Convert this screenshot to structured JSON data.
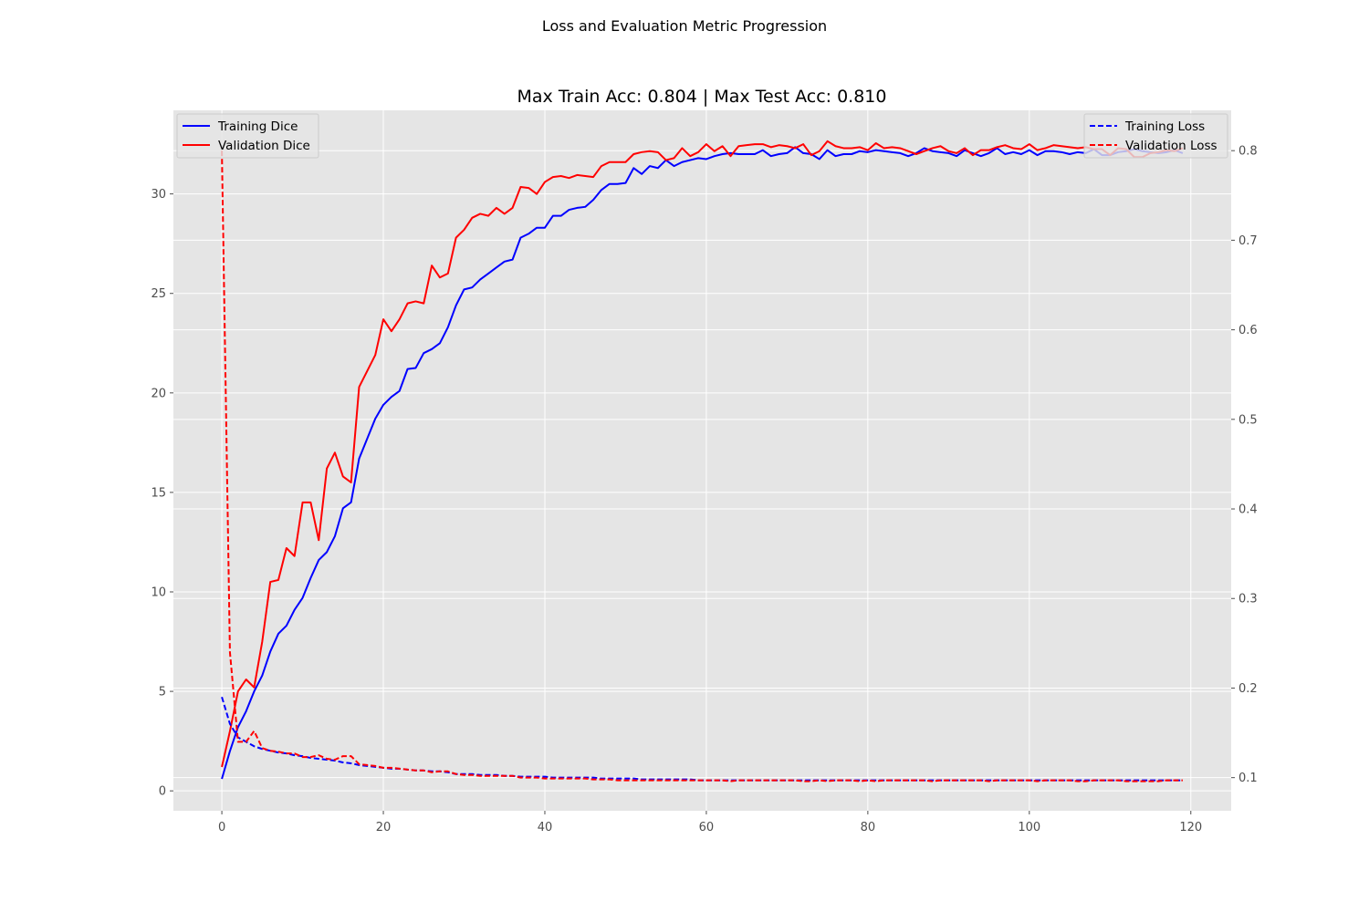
{
  "figure": {
    "suptitle": "Loss and Evaluation Metric Progression",
    "title": "Max Train Acc: 0.804 | Max Test Acc: 0.810"
  },
  "colors": {
    "background": "#e5e5e5",
    "grid": "#ffffff",
    "tick_text": "#4d4d4d",
    "training": "#0000ff",
    "validation": "#ff0000"
  },
  "chart_data": {
    "type": "line",
    "x": [
      0,
      1,
      2,
      3,
      4,
      5,
      6,
      7,
      8,
      9,
      10,
      11,
      12,
      13,
      14,
      15,
      16,
      17,
      18,
      19,
      20,
      21,
      22,
      23,
      24,
      25,
      26,
      27,
      28,
      29,
      30,
      31,
      32,
      33,
      34,
      35,
      36,
      37,
      38,
      39,
      40,
      41,
      42,
      43,
      44,
      45,
      46,
      47,
      48,
      49,
      50,
      51,
      52,
      53,
      54,
      55,
      56,
      57,
      58,
      59,
      60,
      61,
      62,
      63,
      64,
      65,
      66,
      67,
      68,
      69,
      70,
      71,
      72,
      73,
      74,
      75,
      76,
      77,
      78,
      79,
      80,
      81,
      82,
      83,
      84,
      85,
      86,
      87,
      88,
      89,
      90,
      91,
      92,
      93,
      94,
      95,
      96,
      97,
      98,
      99,
      100,
      101,
      102,
      103,
      104,
      105,
      106,
      107,
      108,
      109,
      110,
      111,
      112,
      113,
      114,
      115,
      116,
      117,
      118,
      119
    ],
    "xlim": [
      -6,
      125
    ],
    "xticks": [
      "0",
      "20",
      "40",
      "60",
      "80",
      "100",
      "120"
    ],
    "grid": true,
    "left_axis": {
      "ylim": [
        -1,
        34.2
      ],
      "ticks": [
        "0",
        "5",
        "10",
        "15",
        "20",
        "25",
        "30"
      ],
      "legend_placement": "upper-left",
      "series": [
        {
          "name": "Training Dice",
          "color": "#0000ff",
          "style": "solid",
          "values": [
            0.6,
            2.0,
            3.2,
            4.0,
            5.0,
            5.8,
            7.0,
            7.9,
            8.3,
            9.1,
            9.7,
            10.7,
            11.6,
            12.0,
            12.8,
            14.2,
            14.5,
            16.7,
            17.7,
            18.7,
            19.4,
            19.8,
            20.1,
            21.2,
            21.25,
            22.0,
            22.2,
            22.5,
            23.3,
            24.4,
            25.2,
            25.3,
            25.7,
            26.0,
            26.3,
            26.6,
            26.7,
            27.8,
            28.0,
            28.3,
            28.3,
            28.9,
            28.9,
            29.2,
            29.3,
            29.35,
            29.7,
            30.2,
            30.5,
            30.5,
            30.55,
            31.3,
            31.0,
            31.4,
            31.3,
            31.7,
            31.4,
            31.6,
            31.7,
            31.8,
            31.75,
            31.9,
            32.0,
            32.05,
            32.0,
            32.0,
            32.0,
            32.2,
            31.9,
            32.0,
            32.05,
            32.35,
            32.05,
            32.0,
            31.75,
            32.2,
            31.9,
            32.0,
            32.0,
            32.15,
            32.1,
            32.2,
            32.15,
            32.1,
            32.05,
            31.9,
            32.05,
            32.3,
            32.15,
            32.1,
            32.05,
            31.9,
            32.2,
            32.05,
            31.9,
            32.05,
            32.3,
            32.0,
            32.1,
            32.0,
            32.2,
            31.95,
            32.15,
            32.15,
            32.1,
            32.0,
            32.1,
            32.05,
            32.25,
            31.95,
            31.95,
            32.1,
            32.15,
            32.25,
            32.15,
            32.1,
            32.05,
            32.1,
            32.2,
            32.05
          ]
        },
        {
          "name": "Validation Dice",
          "color": "#ff0000",
          "style": "solid",
          "values": [
            1.2,
            3.0,
            5.0,
            5.6,
            5.2,
            7.5,
            10.5,
            10.6,
            12.2,
            11.8,
            14.5,
            14.5,
            12.6,
            16.2,
            17.0,
            15.8,
            15.5,
            20.3,
            21.1,
            21.9,
            23.7,
            23.1,
            23.7,
            24.5,
            24.6,
            24.5,
            26.4,
            25.8,
            26.0,
            27.8,
            28.2,
            28.8,
            29.0,
            28.9,
            29.3,
            29.0,
            29.3,
            30.35,
            30.3,
            30.0,
            30.6,
            30.85,
            30.9,
            30.8,
            30.95,
            30.9,
            30.85,
            31.4,
            31.6,
            31.6,
            31.6,
            32.0,
            32.1,
            32.15,
            32.1,
            31.7,
            31.8,
            32.3,
            31.9,
            32.1,
            32.5,
            32.15,
            32.4,
            31.9,
            32.4,
            32.45,
            32.5,
            32.5,
            32.35,
            32.45,
            32.4,
            32.3,
            32.5,
            31.95,
            32.15,
            32.65,
            32.4,
            32.3,
            32.3,
            32.35,
            32.2,
            32.55,
            32.3,
            32.35,
            32.3,
            32.15,
            32.0,
            32.15,
            32.3,
            32.4,
            32.15,
            32.05,
            32.3,
            31.95,
            32.2,
            32.2,
            32.35,
            32.45,
            32.3,
            32.25,
            32.5,
            32.2,
            32.3,
            32.45,
            32.4,
            32.35,
            32.3,
            32.35,
            32.25,
            32.25,
            31.95,
            32.3,
            32.25,
            31.85,
            31.85,
            32.05,
            32.1,
            32.2,
            32.15,
            32.3
          ]
        }
      ]
    },
    "right_axis": {
      "ylim": [
        0.063,
        0.845
      ],
      "ticks": [
        "0.1",
        "0.2",
        "0.3",
        "0.4",
        "0.5",
        "0.6",
        "0.7",
        "0.8"
      ],
      "legend_placement": "upper-right",
      "series": [
        {
          "name": "Training Loss",
          "color": "#0000ff",
          "style": "dashed",
          "values": [
            0.19,
            0.16,
            0.145,
            0.14,
            0.135,
            0.132,
            0.13,
            0.128,
            0.127,
            0.125,
            0.124,
            0.122,
            0.121,
            0.12,
            0.119,
            0.117,
            0.116,
            0.114,
            0.113,
            0.112,
            0.111,
            0.11,
            0.11,
            0.109,
            0.108,
            0.108,
            0.107,
            0.107,
            0.106,
            0.104,
            0.104,
            0.104,
            0.103,
            0.103,
            0.103,
            0.102,
            0.102,
            0.101,
            0.101,
            0.101,
            0.101,
            0.1,
            0.1,
            0.1,
            0.1,
            0.1,
            0.1,
            0.099,
            0.099,
            0.099,
            0.099,
            0.099,
            0.098,
            0.098,
            0.098,
            0.098,
            0.098,
            0.098,
            0.098,
            0.097,
            0.097,
            0.097,
            0.097,
            0.097,
            0.097,
            0.097,
            0.097,
            0.097,
            0.097,
            0.097,
            0.097,
            0.097,
            0.097,
            0.097,
            0.097,
            0.097,
            0.097,
            0.097,
            0.097,
            0.097,
            0.097,
            0.097,
            0.097,
            0.097,
            0.097,
            0.097,
            0.097,
            0.097,
            0.097,
            0.097,
            0.097,
            0.097,
            0.097,
            0.097,
            0.097,
            0.097,
            0.097,
            0.097,
            0.097,
            0.097,
            0.097,
            0.097,
            0.097,
            0.097,
            0.097,
            0.097,
            0.097,
            0.097,
            0.097,
            0.097,
            0.097,
            0.097,
            0.097,
            0.097,
            0.097,
            0.097,
            0.097,
            0.097,
            0.097,
            0.097
          ]
        },
        {
          "name": "Validation Loss",
          "color": "#ff0000",
          "style": "dashed",
          "values": [
            0.8,
            0.24,
            0.14,
            0.14,
            0.152,
            0.133,
            0.13,
            0.129,
            0.127,
            0.127,
            0.123,
            0.123,
            0.125,
            0.121,
            0.12,
            0.124,
            0.124,
            0.115,
            0.114,
            0.113,
            0.111,
            0.111,
            0.11,
            0.109,
            0.108,
            0.108,
            0.106,
            0.107,
            0.107,
            0.104,
            0.103,
            0.103,
            0.102,
            0.102,
            0.102,
            0.102,
            0.102,
            0.1,
            0.1,
            0.1,
            0.099,
            0.099,
            0.099,
            0.099,
            0.099,
            0.099,
            0.098,
            0.098,
            0.098,
            0.097,
            0.097,
            0.097,
            0.097,
            0.097,
            0.097,
            0.097,
            0.097,
            0.097,
            0.097,
            0.097,
            0.097,
            0.097,
            0.097,
            0.096,
            0.097,
            0.097,
            0.097,
            0.097,
            0.097,
            0.097,
            0.097,
            0.097,
            0.096,
            0.096,
            0.097,
            0.096,
            0.097,
            0.097,
            0.097,
            0.096,
            0.097,
            0.096,
            0.097,
            0.097,
            0.097,
            0.097,
            0.097,
            0.097,
            0.096,
            0.097,
            0.097,
            0.097,
            0.097,
            0.097,
            0.097,
            0.096,
            0.097,
            0.097,
            0.097,
            0.097,
            0.097,
            0.096,
            0.097,
            0.097,
            0.097,
            0.097,
            0.096,
            0.096,
            0.097,
            0.097,
            0.097,
            0.097,
            0.096,
            0.096,
            0.096,
            0.096,
            0.096,
            0.097,
            0.097,
            0.097
          ]
        }
      ]
    }
  }
}
